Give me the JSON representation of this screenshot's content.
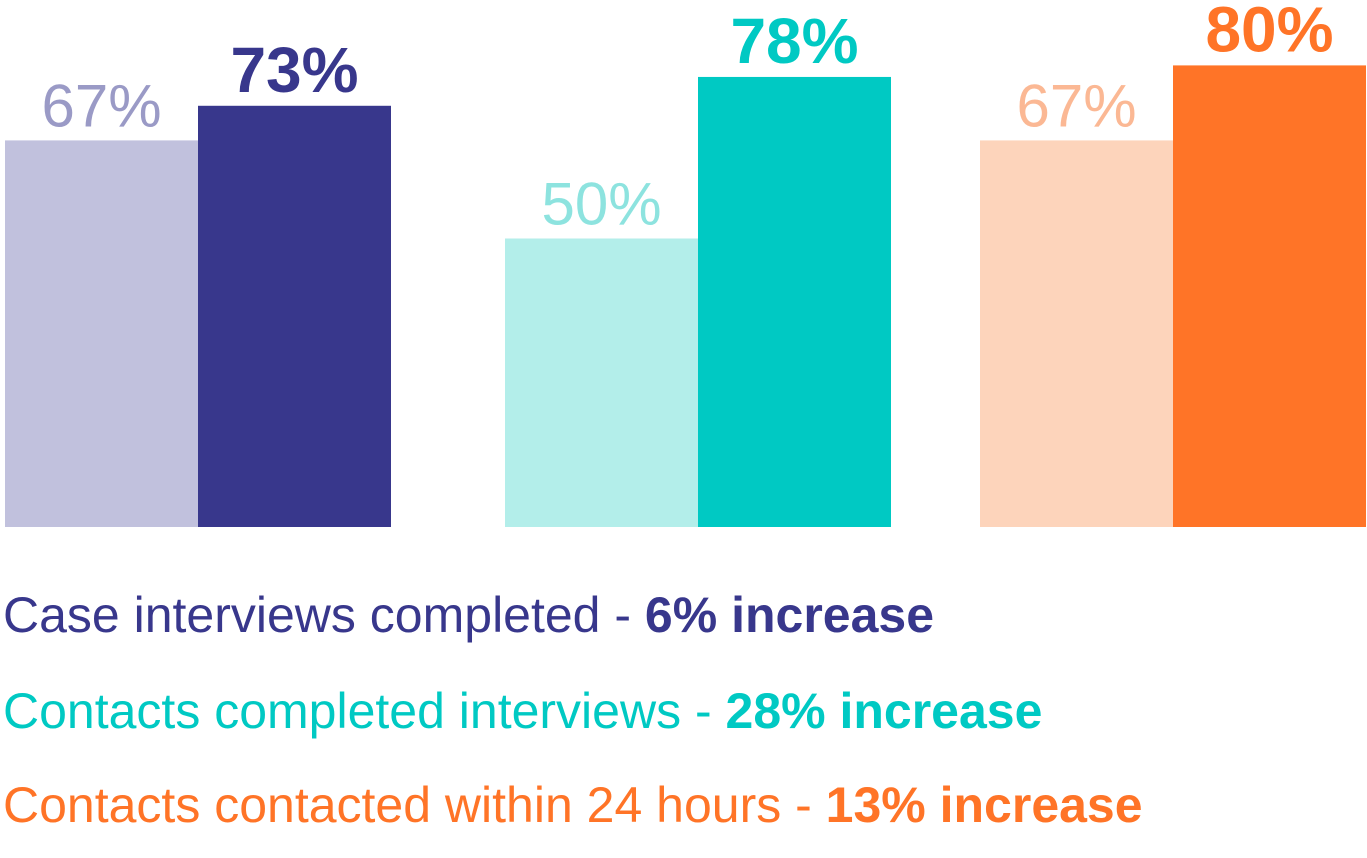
{
  "chart_data": {
    "type": "grouped_bar",
    "groups": [
      {
        "values": [
          67,
          73
        ],
        "value_labels": [
          "67%",
          "73%"
        ],
        "colors": [
          "#c1c1dd",
          "#38378c"
        ],
        "label_colors": [
          "#9a9ac6",
          "#38378c"
        ],
        "caption": "Case interviews completed - ",
        "highlight": "6% increase"
      },
      {
        "values": [
          50,
          78
        ],
        "value_labels": [
          "50%",
          "78%"
        ],
        "colors": [
          "#b3eeea",
          "#00c9c3"
        ],
        "label_colors": [
          "#8de3df",
          "#00c9c3"
        ],
        "caption": "Contacts completed interviews - ",
        "highlight": "28% increase"
      },
      {
        "values": [
          67,
          80
        ],
        "value_labels": [
          "67%",
          "80%"
        ],
        "colors": [
          "#fdd4bb",
          "#ff7427"
        ],
        "label_colors": [
          "#fbb894",
          "#ff7427"
        ],
        "caption": "Contacts contacted within 24 hours - ",
        "highlight": "13% increase"
      }
    ]
  }
}
